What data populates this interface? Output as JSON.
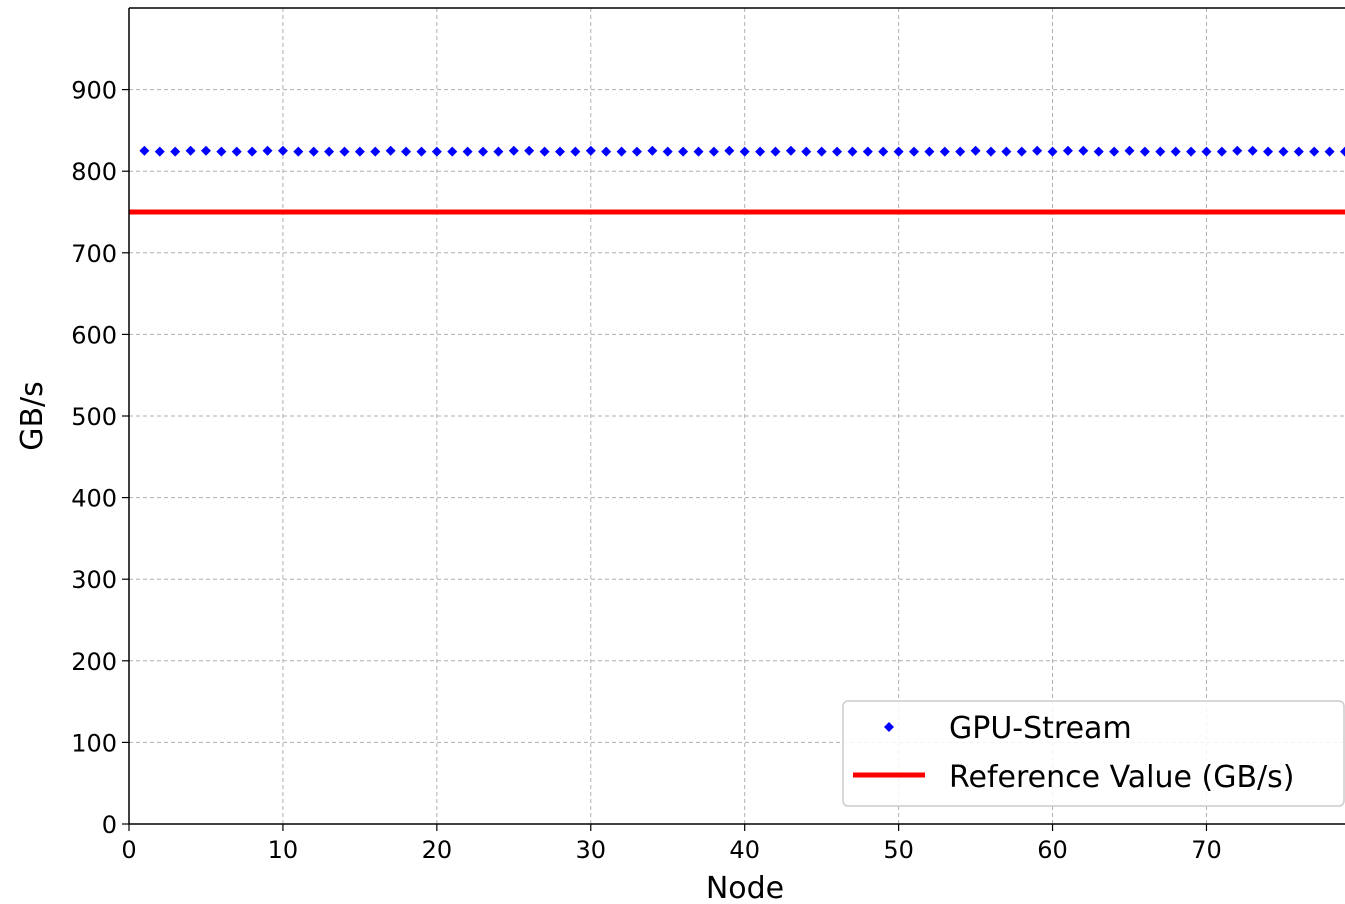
{
  "chart_data": {
    "type": "scatter",
    "title": "",
    "xlabel": "Node",
    "ylabel": "GB/s",
    "xlim": [
      0,
      79
    ],
    "ylim": [
      0,
      1000
    ],
    "xticks": [
      0,
      10,
      20,
      30,
      40,
      50,
      60,
      70
    ],
    "yticks": [
      0,
      100,
      200,
      300,
      400,
      500,
      600,
      700,
      800,
      900
    ],
    "grid": true,
    "legend_position": "lower-right",
    "series": [
      {
        "name": "GPU-Stream",
        "kind": "scatter",
        "marker": "diamond",
        "color": "#0000ff",
        "x": [
          1,
          2,
          3,
          4,
          5,
          6,
          7,
          8,
          9,
          10,
          11,
          12,
          13,
          14,
          15,
          16,
          17,
          18,
          19,
          20,
          21,
          22,
          23,
          24,
          25,
          26,
          27,
          28,
          29,
          30,
          31,
          32,
          33,
          34,
          35,
          36,
          37,
          38,
          39,
          40,
          41,
          42,
          43,
          44,
          45,
          46,
          47,
          48,
          49,
          50,
          51,
          52,
          53,
          54,
          55,
          56,
          57,
          58,
          59,
          60,
          61,
          62,
          63,
          64,
          65,
          66,
          67,
          68,
          69,
          70,
          71,
          72,
          73,
          74,
          75,
          76,
          77,
          78,
          79
        ],
        "y": [
          825,
          824,
          824,
          825,
          825,
          824,
          824,
          824,
          825,
          825,
          824,
          824,
          824,
          824,
          824,
          824,
          825,
          824,
          824,
          824,
          824,
          824,
          824,
          824,
          825,
          825,
          824,
          824,
          824,
          825,
          824,
          824,
          824,
          825,
          824,
          824,
          824,
          824,
          825,
          824,
          824,
          824,
          825,
          824,
          824,
          824,
          824,
          824,
          824,
          824,
          824,
          824,
          824,
          824,
          825,
          824,
          824,
          824,
          825,
          824,
          825,
          825,
          824,
          824,
          825,
          824,
          824,
          824,
          824,
          824,
          824,
          825,
          825,
          824,
          824,
          824,
          824,
          824,
          824
        ]
      },
      {
        "name": "Reference Value (GB/s)",
        "kind": "hline",
        "color": "#ff0000",
        "y": 750
      }
    ]
  }
}
